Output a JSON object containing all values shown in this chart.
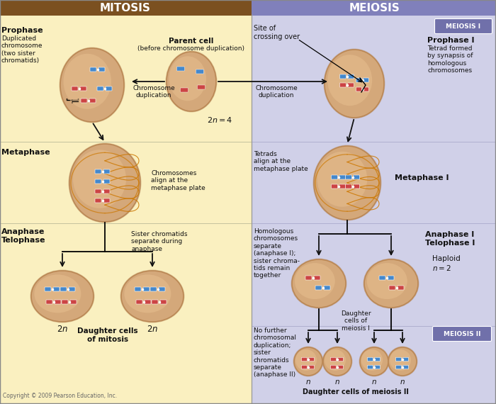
{
  "mitosis_header_color": "#7B5020",
  "meiosis_header_color": "#8080BB",
  "mitosis_bg_color": "#FAF0C0",
  "meiosis_bg_color": "#D0D0E8",
  "header_text_color": "#FFFFFF",
  "cell_fill_color": "#D4A87A",
  "cell_edge_color": "#BB8855",
  "cell_inner_color": "#E8C090",
  "chr_blue": "#4488CC",
  "chr_red": "#CC4444",
  "spindle_color": "#CC7700",
  "arrow_color": "#111111",
  "label_color": "#111111",
  "meiosis_box_color": "#7070AA",
  "copyright_text": "Copyright © 2009 Pearson Education, Inc.",
  "title_mitosis": "MITOSIS",
  "title_meiosis": "MEIOSIS",
  "figsize": [
    7.0,
    5.7
  ],
  "dpi": 100
}
